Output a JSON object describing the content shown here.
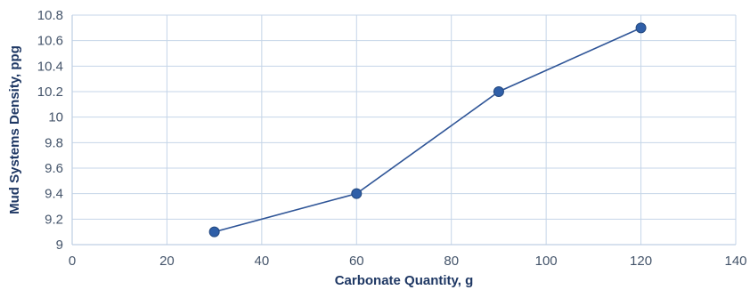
{
  "chart_data": {
    "type": "line",
    "title": "",
    "xlabel": "Carbonate Quantity, g",
    "ylabel": "Mud Systems Density, ppg",
    "xlim": [
      0,
      140
    ],
    "ylim": [
      9,
      10.8
    ],
    "x_ticks": [
      0,
      20,
      40,
      60,
      80,
      100,
      120,
      140
    ],
    "y_ticks": [
      9,
      9.2,
      9.4,
      9.6,
      9.8,
      10,
      10.2,
      10.4,
      10.6,
      10.8
    ],
    "x_tick_labels": [
      "0",
      "20",
      "40",
      "60",
      "80",
      "100",
      "120",
      "140"
    ],
    "y_tick_labels": [
      "9",
      "9.2",
      "9.4",
      "9.6",
      "9.8",
      "10",
      "10.2",
      "10.4",
      "10.6",
      "10.8"
    ],
    "grid": true,
    "legend": "none",
    "series": [
      {
        "x": [
          30,
          60,
          90,
          120
        ],
        "y": [
          9.1,
          9.4,
          10.2,
          10.7
        ],
        "color": "#2f5597"
      }
    ]
  }
}
